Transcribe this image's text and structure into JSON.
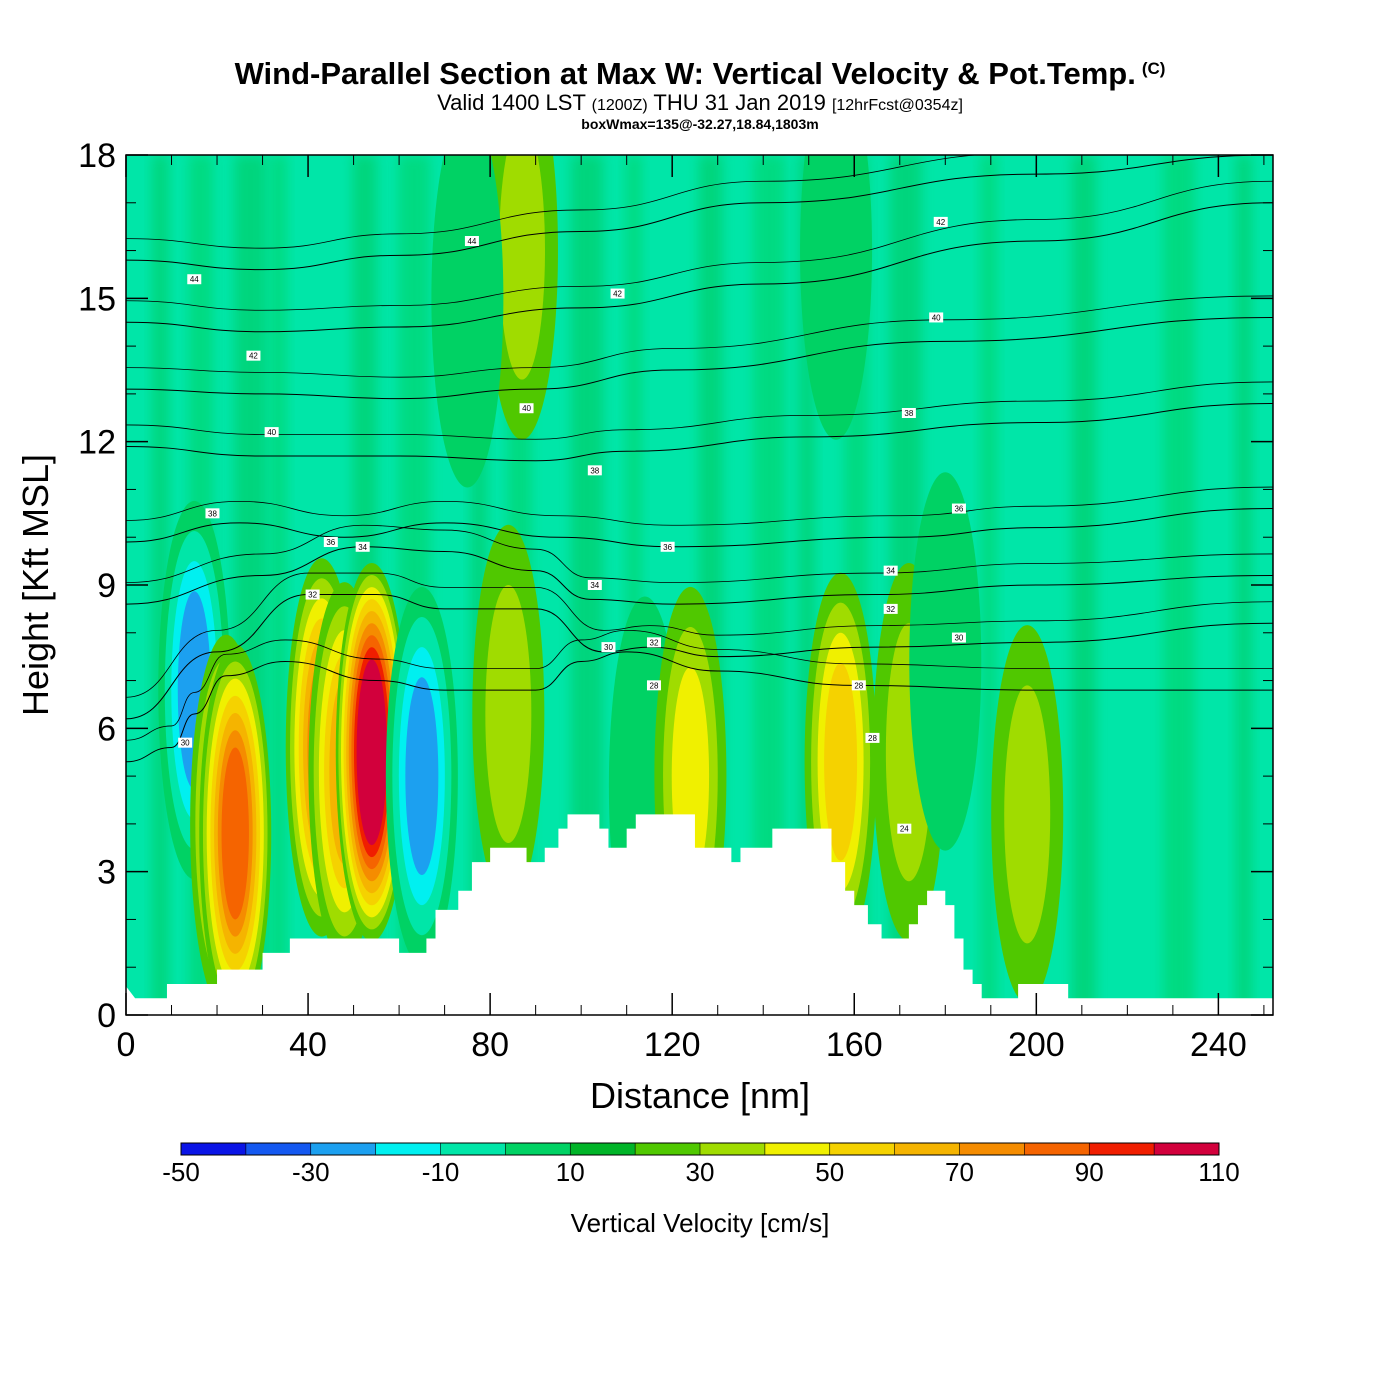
{
  "title": {
    "main": "Wind-Parallel Section at Max W: Vertical Velocity & Pot.Temp.",
    "copyright": "(C)",
    "valid_prefix": "Valid 1400 LST",
    "valid_zulu": "(1200Z)",
    "valid_date": "THU 31 Jan 2019",
    "forecast": "[12hrFcst@0354z]",
    "box_wmax": "boxWmax=135@-32.27,18.84,1803m"
  },
  "chart_data": {
    "type": "heatmap",
    "xlabel": "Distance [nm]",
    "ylabel": "Height [Kft MSL]",
    "xlim": [
      0,
      252
    ],
    "ylim": [
      0,
      18
    ],
    "x_ticks": [
      0,
      40,
      80,
      120,
      160,
      200,
      240
    ],
    "y_ticks": [
      0,
      3,
      6,
      9,
      12,
      15,
      18
    ],
    "colorbar": {
      "label": "Vertical Velocity [cm/s]",
      "tick_labels": [
        "-50",
        "-30",
        "-10",
        "10",
        "30",
        "50",
        "70",
        "90",
        "110"
      ],
      "colors": [
        "#0a14e6",
        "#1458f0",
        "#1ca0f0",
        "#00f0f0",
        "#00e6a8",
        "#00d264",
        "#00b428",
        "#50c800",
        "#a0dc00",
        "#f0f000",
        "#f5d200",
        "#f5b400",
        "#f58c00",
        "#f56400",
        "#f01e00",
        "#d2003c"
      ]
    },
    "terrain_top_kft": [
      [
        0,
        0.6
      ],
      [
        2,
        0.35
      ],
      [
        9,
        0.35
      ],
      [
        9,
        0.65
      ],
      [
        20,
        0.65
      ],
      [
        20,
        0.95
      ],
      [
        30,
        0.95
      ],
      [
        30,
        1.3
      ],
      [
        36,
        1.3
      ],
      [
        36,
        1.6
      ],
      [
        60,
        1.6
      ],
      [
        60,
        1.3
      ],
      [
        66,
        1.3
      ],
      [
        66,
        1.6
      ],
      [
        68,
        1.6
      ],
      [
        68,
        2.2
      ],
      [
        73,
        2.2
      ],
      [
        73,
        2.6
      ],
      [
        76,
        2.6
      ],
      [
        76,
        3.2
      ],
      [
        80,
        3.2
      ],
      [
        80,
        3.5
      ],
      [
        88,
        3.5
      ],
      [
        88,
        3.2
      ],
      [
        92,
        3.2
      ],
      [
        92,
        3.5
      ],
      [
        95,
        3.5
      ],
      [
        95,
        3.9
      ],
      [
        97,
        3.9
      ],
      [
        97,
        4.2
      ],
      [
        104,
        4.2
      ],
      [
        104,
        3.9
      ],
      [
        106,
        3.9
      ],
      [
        106,
        3.5
      ],
      [
        110,
        3.5
      ],
      [
        110,
        3.9
      ],
      [
        112,
        3.9
      ],
      [
        112,
        4.2
      ],
      [
        125,
        4.2
      ],
      [
        125,
        3.5
      ],
      [
        133,
        3.5
      ],
      [
        133,
        3.2
      ],
      [
        135,
        3.2
      ],
      [
        135,
        3.5
      ],
      [
        142,
        3.5
      ],
      [
        142,
        3.9
      ],
      [
        155,
        3.9
      ],
      [
        155,
        3.2
      ],
      [
        158,
        3.2
      ],
      [
        158,
        2.6
      ],
      [
        160,
        2.6
      ],
      [
        160,
        2.3
      ],
      [
        163,
        2.3
      ],
      [
        163,
        1.9
      ],
      [
        166,
        1.9
      ],
      [
        166,
        1.6
      ],
      [
        172,
        1.6
      ],
      [
        172,
        1.9
      ],
      [
        174,
        1.9
      ],
      [
        174,
        2.3
      ],
      [
        176,
        2.3
      ],
      [
        176,
        2.6
      ],
      [
        180,
        2.6
      ],
      [
        180,
        2.3
      ],
      [
        182,
        2.3
      ],
      [
        182,
        1.6
      ],
      [
        184,
        1.6
      ],
      [
        184,
        0.95
      ],
      [
        186,
        0.95
      ],
      [
        186,
        0.65
      ],
      [
        188,
        0.65
      ],
      [
        188,
        0.35
      ],
      [
        196,
        0.35
      ],
      [
        196,
        0.65
      ],
      [
        207,
        0.65
      ],
      [
        207,
        0.35
      ],
      [
        252,
        0.35
      ]
    ],
    "w_blobs_cm_s": [
      {
        "x": 15,
        "y": 6.8,
        "value": -45
      },
      {
        "x": 22,
        "y": 4.0,
        "value": 55
      },
      {
        "x": 24,
        "y": 3.8,
        "value": 70
      },
      {
        "x": 43,
        "y": 5.6,
        "value": 60
      },
      {
        "x": 48,
        "y": 5.1,
        "value": 52
      },
      {
        "x": 54,
        "y": 5.5,
        "value": 100
      },
      {
        "x": 65,
        "y": 5.0,
        "value": -45
      },
      {
        "x": 84,
        "y": 6.3,
        "value": 22
      },
      {
        "x": 87,
        "y": 16.0,
        "value": 20
      },
      {
        "x": 114,
        "y": 4.8,
        "value": -12
      },
      {
        "x": 124,
        "y": 5.0,
        "value": 30
      },
      {
        "x": 157,
        "y": 5.3,
        "value": 45
      },
      {
        "x": 172,
        "y": 5.5,
        "value": 25
      },
      {
        "x": 180,
        "y": 7.4,
        "value": -14
      },
      {
        "x": 198,
        "y": 4.2,
        "value": 28
      },
      {
        "x": 156,
        "y": 16.0,
        "value": -12
      },
      {
        "x": 75,
        "y": 15.0,
        "value": -12
      }
    ],
    "theta_contours": [
      {
        "level": "30",
        "points": [
          [
            0,
            5.3
          ],
          [
            10,
            5.6
          ],
          [
            15,
            6.3
          ],
          [
            22,
            7.1
          ],
          [
            35,
            7.4
          ],
          [
            55,
            7.0
          ],
          [
            70,
            6.8
          ],
          [
            90,
            6.8
          ],
          [
            100,
            7.4
          ],
          [
            110,
            7.6
          ],
          [
            130,
            7.2
          ],
          [
            160,
            6.9
          ],
          [
            200,
            6.8
          ],
          [
            252,
            6.8
          ]
        ]
      },
      {
        "level": "32",
        "points": [
          [
            0,
            6.2
          ],
          [
            20,
            7.6
          ],
          [
            40,
            8.8
          ],
          [
            55,
            8.8
          ],
          [
            70,
            8.5
          ],
          [
            90,
            8.5
          ],
          [
            105,
            7.6
          ],
          [
            115,
            7.7
          ],
          [
            130,
            7.5
          ],
          [
            165,
            7.7
          ],
          [
            200,
            7.8
          ],
          [
            252,
            8.2
          ]
        ]
      },
      {
        "level": "34",
        "points": [
          [
            0,
            8.6
          ],
          [
            30,
            9.2
          ],
          [
            52,
            9.8
          ],
          [
            70,
            9.7
          ],
          [
            90,
            9.3
          ],
          [
            102,
            8.7
          ],
          [
            120,
            8.6
          ],
          [
            165,
            8.8
          ],
          [
            200,
            9.0
          ],
          [
            252,
            9.2
          ]
        ]
      },
      {
        "level": "36",
        "points": [
          [
            0,
            9.9
          ],
          [
            25,
            10.3
          ],
          [
            48,
            10.0
          ],
          [
            70,
            10.3
          ],
          [
            95,
            10.0
          ],
          [
            120,
            9.8
          ],
          [
            170,
            10.0
          ],
          [
            200,
            10.2
          ],
          [
            252,
            10.6
          ]
        ]
      },
      {
        "level": "38",
        "points": [
          [
            0,
            11.9
          ],
          [
            30,
            11.7
          ],
          [
            60,
            11.7
          ],
          [
            90,
            11.6
          ],
          [
            110,
            11.8
          ],
          [
            150,
            12.1
          ],
          [
            200,
            12.4
          ],
          [
            252,
            12.8
          ]
        ]
      },
      {
        "level": "40",
        "points": [
          [
            0,
            13.1
          ],
          [
            30,
            13.0
          ],
          [
            60,
            12.9
          ],
          [
            90,
            13.1
          ],
          [
            120,
            13.5
          ],
          [
            180,
            14.1
          ],
          [
            252,
            14.6
          ]
        ]
      },
      {
        "level": "42",
        "points": [
          [
            0,
            14.5
          ],
          [
            30,
            14.3
          ],
          [
            60,
            14.4
          ],
          [
            100,
            14.8
          ],
          [
            140,
            15.3
          ],
          [
            200,
            16.2
          ],
          [
            252,
            17.0
          ]
        ]
      },
      {
        "level": "44",
        "points": [
          [
            0,
            15.8
          ],
          [
            30,
            15.6
          ],
          [
            60,
            15.9
          ],
          [
            100,
            16.4
          ],
          [
            140,
            17.0
          ],
          [
            200,
            17.6
          ],
          [
            252,
            18.0
          ]
        ]
      }
    ],
    "contour_labels": [
      {
        "text": "44",
        "x": 15,
        "y": 15.4
      },
      {
        "text": "44",
        "x": 76,
        "y": 16.2
      },
      {
        "text": "42",
        "x": 28,
        "y": 13.8
      },
      {
        "text": "42",
        "x": 108,
        "y": 15.1
      },
      {
        "text": "42",
        "x": 179,
        "y": 16.6
      },
      {
        "text": "40",
        "x": 32,
        "y": 12.2
      },
      {
        "text": "40",
        "x": 88,
        "y": 12.7
      },
      {
        "text": "40",
        "x": 178,
        "y": 14.6
      },
      {
        "text": "38",
        "x": 19,
        "y": 10.5
      },
      {
        "text": "38",
        "x": 103,
        "y": 11.4
      },
      {
        "text": "38",
        "x": 172,
        "y": 12.6
      },
      {
        "text": "36",
        "x": 45,
        "y": 9.9
      },
      {
        "text": "36",
        "x": 119,
        "y": 9.8
      },
      {
        "text": "36",
        "x": 183,
        "y": 10.6
      },
      {
        "text": "34",
        "x": 52,
        "y": 9.8
      },
      {
        "text": "34",
        "x": 103,
        "y": 9.0
      },
      {
        "text": "34",
        "x": 168,
        "y": 9.3
      },
      {
        "text": "32",
        "x": 41,
        "y": 8.8
      },
      {
        "text": "32",
        "x": 116,
        "y": 7.8
      },
      {
        "text": "32",
        "x": 168,
        "y": 8.5
      },
      {
        "text": "30",
        "x": 106,
        "y": 7.7
      },
      {
        "text": "30",
        "x": 183,
        "y": 7.9
      },
      {
        "text": "30",
        "x": 13,
        "y": 5.7
      },
      {
        "text": "28",
        "x": 116,
        "y": 6.9
      },
      {
        "text": "28",
        "x": 161,
        "y": 6.9
      },
      {
        "text": "28",
        "x": 164,
        "y": 5.8
      },
      {
        "text": "24",
        "x": 171,
        "y": 3.9
      }
    ]
  }
}
